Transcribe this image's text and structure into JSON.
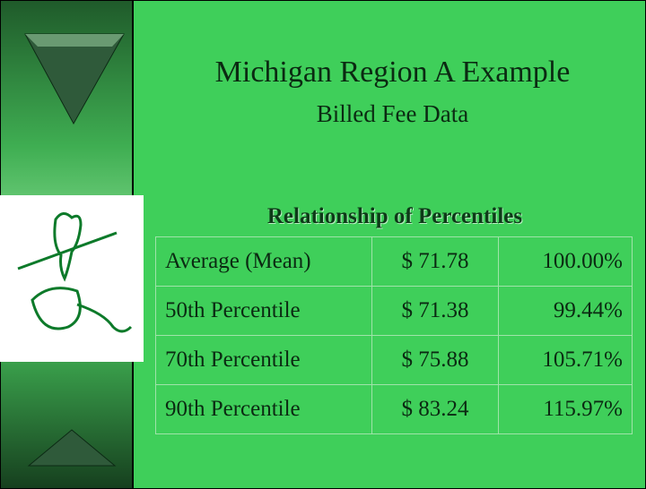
{
  "header": {
    "title": "Michigan Region A Example",
    "subtitle": "Billed Fee Data"
  },
  "table": {
    "title": "Relationship of Percentiles",
    "rows": [
      [
        "Average (Mean)",
        "$ 71.78",
        "100.00%"
      ],
      [
        "50th Percentile",
        "$ 71.38",
        "99.44%"
      ],
      [
        "70th Percentile",
        "$ 75.88",
        "105.71%"
      ],
      [
        "90th Percentile",
        "$ 83.24",
        "115.97%"
      ]
    ]
  }
}
